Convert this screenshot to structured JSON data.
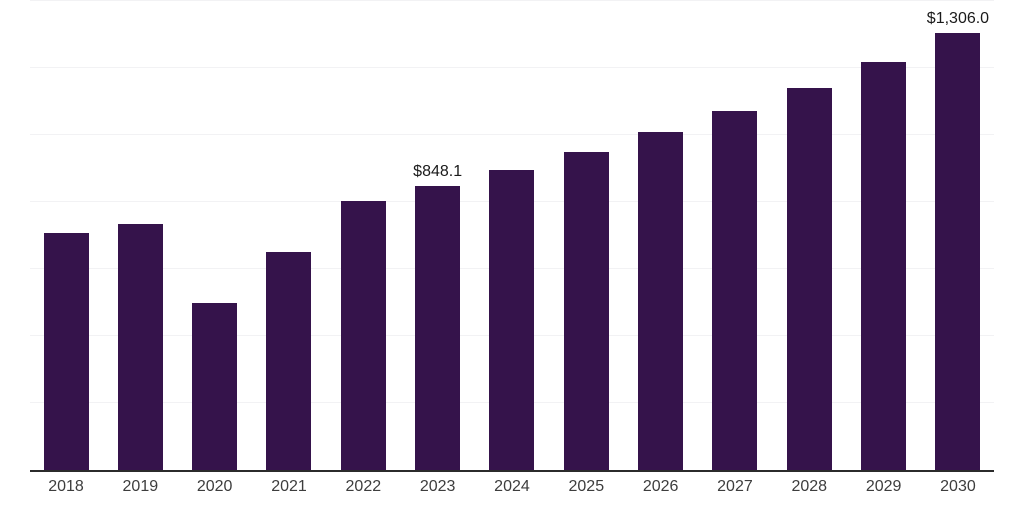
{
  "chart_data": {
    "type": "bar",
    "title": "",
    "xlabel": "",
    "ylabel": "",
    "categories": [
      "2018",
      "2019",
      "2020",
      "2021",
      "2022",
      "2023",
      "2024",
      "2025",
      "2026",
      "2027",
      "2028",
      "2029",
      "2030"
    ],
    "values": [
      707,
      734,
      498,
      650,
      802,
      848.1,
      895,
      949,
      1008,
      1071,
      1140,
      1217,
      1306.0
    ],
    "data_labels": [
      "",
      "",
      "",
      "",
      "",
      "$848.1",
      "",
      "",
      "",
      "",
      "",
      "",
      "$1,306.0"
    ],
    "ylim": [
      0,
      1400
    ],
    "gridline_step": 200,
    "grid": true,
    "y_tick_labels_visible": false,
    "legend_position": "none",
    "colors": {
      "bar": "#35134B",
      "axis_line": "#2B2B2B",
      "gridline": "#F2F2F4",
      "tick_label": "#3D3D3D",
      "data_label": "#1A1A1A",
      "background": "#FFFFFF"
    }
  }
}
